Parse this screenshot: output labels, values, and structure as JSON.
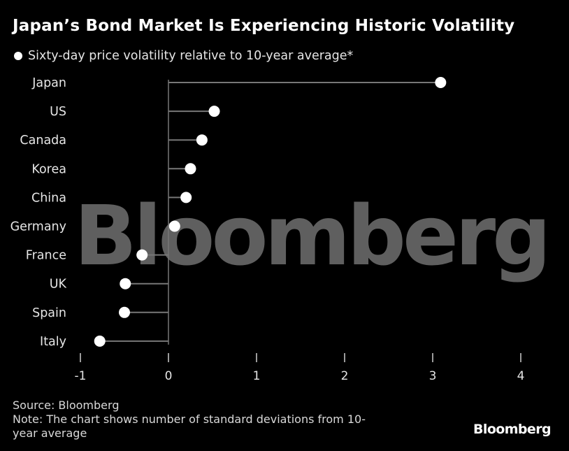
{
  "title": "Japan’s Bond Market Is Experiencing Historic Volatility",
  "legend": {
    "label": "Sixty-day price volatility relative to 10-year average*"
  },
  "watermark": "Bloomberg",
  "footer": {
    "source": "Source: Bloomberg",
    "note": "Note: The chart shows number of standard deviations from 10-year average",
    "brand": "Bloomberg"
  },
  "chart_data": {
    "type": "dot",
    "title": "Japan’s Bond Market Is Experiencing Historic Volatility",
    "xlabel": "",
    "ylabel": "",
    "xlim": [
      -1,
      4
    ],
    "xticks": [
      -1,
      0,
      1,
      2,
      3,
      4
    ],
    "grid": false,
    "legend": "top-left",
    "categories": [
      "Japan",
      "US",
      "Canada",
      "Korea",
      "China",
      "Germany",
      "France",
      "UK",
      "Spain",
      "Italy"
    ],
    "series": [
      {
        "name": "Sixty-day price volatility relative to 10-year average*",
        "values": [
          3.09,
          0.52,
          0.38,
          0.25,
          0.2,
          0.07,
          -0.3,
          -0.49,
          -0.5,
          -0.78
        ]
      }
    ],
    "colors": {
      "background": "#000000",
      "dot": "#ffffff",
      "stem": "#777777",
      "text": "#e6e6e6"
    }
  }
}
